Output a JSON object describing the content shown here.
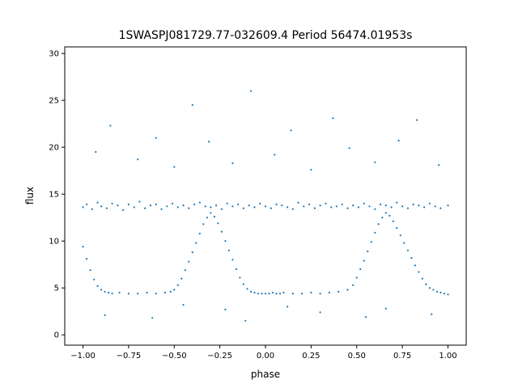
{
  "chart_data": {
    "type": "scatter",
    "title": "1SWASPJ081729.77-032609.4 Period 56474.01953s",
    "xlabel": "phase",
    "ylabel": "flux",
    "xlim": [
      -1.1,
      1.1
    ],
    "ylim": [
      -1.1,
      30.7
    ],
    "grid": false,
    "legend": "none",
    "marker_color": "#1f77b4",
    "x_ticks": [
      {
        "value": -1.0,
        "label": "−1.00"
      },
      {
        "value": -0.75,
        "label": "−0.75"
      },
      {
        "value": -0.5,
        "label": "−0.50"
      },
      {
        "value": -0.25,
        "label": "−0.25"
      },
      {
        "value": 0.0,
        "label": "0.00"
      },
      {
        "value": 0.25,
        "label": "0.25"
      },
      {
        "value": 0.5,
        "label": "0.50"
      },
      {
        "value": 0.75,
        "label": "0.75"
      },
      {
        "value": 1.0,
        "label": "1.00"
      }
    ],
    "y_ticks": [
      {
        "value": 0,
        "label": "0"
      },
      {
        "value": 5,
        "label": "5"
      },
      {
        "value": 10,
        "label": "10"
      },
      {
        "value": 15,
        "label": "15"
      },
      {
        "value": 20,
        "label": "20"
      },
      {
        "value": 25,
        "label": "25"
      },
      {
        "value": 30,
        "label": "30"
      }
    ],
    "series": [
      {
        "x": [
          -1.0,
          -0.98,
          -0.95,
          -0.92,
          -0.9,
          -0.87,
          -0.84,
          -0.81,
          -0.78,
          -0.75,
          -0.72,
          -0.69,
          -0.66,
          -0.63,
          -0.6,
          -0.57,
          -0.54,
          -0.51,
          -0.48,
          -0.45,
          -0.42,
          -0.39,
          -0.36,
          -0.33,
          -0.3,
          -0.27,
          -0.24,
          -0.21,
          -0.18,
          -0.15,
          -0.12,
          -0.09,
          -0.06,
          -0.03,
          0.0,
          0.03,
          0.06,
          0.09,
          0.12,
          0.15,
          0.18,
          0.21,
          0.24,
          0.27,
          0.3,
          0.33,
          0.36,
          0.39,
          0.42,
          0.45,
          0.48,
          0.51,
          0.54,
          0.57,
          0.6,
          0.63,
          0.66,
          0.69,
          0.72,
          0.75,
          0.78,
          0.81,
          0.84,
          0.87,
          0.9,
          0.93,
          0.96,
          1.0,
          -1.0,
          -0.98,
          -0.96,
          -0.94,
          -0.92,
          -0.9,
          -0.88,
          -0.86,
          -0.84,
          -0.8,
          -0.75,
          -0.7,
          -0.65,
          -0.6,
          -0.55,
          -0.52,
          -0.5,
          -0.48,
          -0.46,
          -0.44,
          -0.42,
          -0.4,
          -0.38,
          -0.36,
          -0.34,
          -0.32,
          -0.3,
          -0.28,
          -0.26,
          -0.24,
          -0.22,
          -0.2,
          -0.18,
          -0.16,
          -0.14,
          -0.12,
          -0.1,
          -0.08,
          -0.06,
          -0.04,
          -0.02,
          0.0,
          0.02,
          0.04,
          0.06,
          0.08,
          0.1,
          0.15,
          0.2,
          0.25,
          0.3,
          0.35,
          0.4,
          0.45,
          0.48,
          0.5,
          0.52,
          0.54,
          0.56,
          0.58,
          0.6,
          0.62,
          0.64,
          0.66,
          0.68,
          0.7,
          0.72,
          0.74,
          0.76,
          0.78,
          0.8,
          0.82,
          0.84,
          0.86,
          0.88,
          0.9,
          0.92,
          0.94,
          0.96,
          0.98,
          1.0,
          -0.93,
          -0.85,
          -0.7,
          -0.6,
          -0.5,
          -0.4,
          -0.31,
          -0.18,
          -0.08,
          0.05,
          0.14,
          0.25,
          0.37,
          0.46,
          0.6,
          0.73,
          0.83,
          0.95,
          -0.88,
          -0.62,
          -0.45,
          -0.22,
          -0.11,
          0.12,
          0.3,
          0.55,
          0.66,
          0.91
        ],
        "y": [
          13.6,
          13.9,
          13.4,
          14.1,
          13.7,
          13.5,
          14.0,
          13.8,
          13.3,
          13.9,
          13.6,
          14.2,
          13.5,
          13.8,
          13.9,
          13.4,
          13.7,
          14.0,
          13.6,
          13.8,
          13.5,
          13.9,
          14.1,
          13.7,
          13.6,
          13.8,
          13.4,
          14.0,
          13.7,
          13.9,
          13.5,
          13.8,
          13.6,
          14.0,
          13.7,
          13.5,
          13.9,
          13.8,
          13.6,
          13.4,
          14.1,
          13.7,
          13.9,
          13.5,
          13.8,
          14.0,
          13.6,
          13.7,
          13.9,
          13.5,
          13.8,
          13.6,
          14.0,
          13.7,
          13.4,
          13.9,
          13.8,
          13.6,
          14.1,
          13.7,
          13.5,
          13.9,
          13.8,
          13.6,
          14.0,
          13.7,
          13.5,
          13.8,
          9.4,
          8.1,
          6.9,
          5.9,
          5.2,
          4.8,
          4.6,
          4.5,
          4.4,
          4.5,
          4.4,
          4.4,
          4.5,
          4.4,
          4.5,
          4.6,
          4.8,
          5.3,
          6.0,
          6.9,
          7.8,
          8.8,
          9.8,
          10.8,
          11.8,
          12.5,
          13.0,
          12.6,
          11.9,
          11.0,
          10.0,
          9.0,
          8.0,
          7.0,
          6.1,
          5.4,
          4.9,
          4.6,
          4.5,
          4.4,
          4.4,
          4.4,
          4.4,
          4.5,
          4.4,
          4.4,
          4.5,
          4.4,
          4.4,
          4.5,
          4.4,
          4.5,
          4.6,
          4.8,
          5.3,
          6.1,
          7.0,
          7.9,
          8.9,
          9.9,
          10.9,
          11.8,
          12.5,
          13.0,
          12.7,
          12.1,
          11.4,
          10.6,
          9.8,
          9.0,
          8.2,
          7.4,
          6.7,
          6.0,
          5.4,
          5.0,
          4.8,
          4.6,
          4.5,
          4.4,
          4.3,
          19.5,
          22.3,
          18.7,
          21.0,
          17.9,
          24.5,
          20.6,
          18.3,
          26.0,
          19.2,
          21.8,
          17.6,
          23.1,
          19.9,
          18.4,
          20.7,
          22.9,
          18.1,
          2.1,
          1.8,
          3.2,
          2.7,
          1.5,
          3.0,
          2.4,
          1.9,
          2.8,
          2.2
        ]
      }
    ]
  }
}
